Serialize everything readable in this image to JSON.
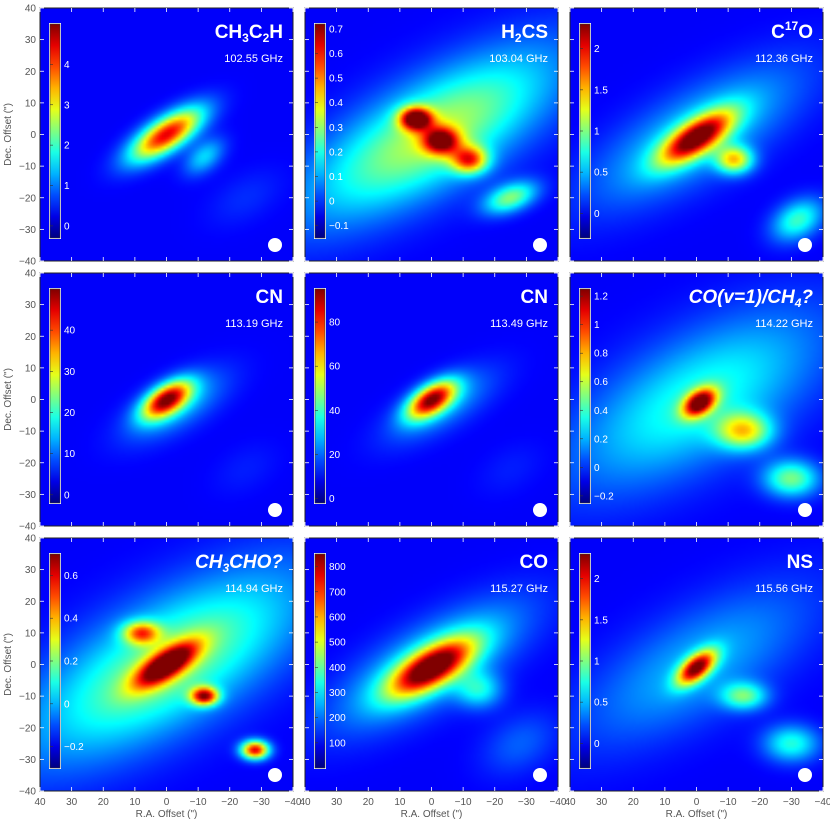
{
  "chart_data": {
    "type": "heatmap",
    "xlabel": "R.A. Offset (\")",
    "ylabel": "Dec. Offset (\")",
    "xlim": [
      40,
      -40
    ],
    "ylim": [
      -40,
      40
    ],
    "xticks": [
      40,
      30,
      20,
      10,
      0,
      -10,
      -20,
      -30,
      -40
    ],
    "yticks": [
      40,
      30,
      20,
      10,
      0,
      -10,
      -20,
      -30,
      -40
    ],
    "colormap": "jet",
    "panels": [
      {
        "molecule": {
          "base": "CH",
          "parts": [
            [
              "sub",
              "3"
            ],
            [
              "base",
              "C"
            ],
            [
              "sub",
              "2"
            ],
            [
              "base",
              "H"
            ]
          ]
        },
        "italic": false,
        "frequency": "102.55 GHz",
        "colorbar": {
          "min": -0.3,
          "max": 5.0,
          "ticks": [
            0,
            1,
            2,
            3,
            4
          ],
          "labels": [
            "0",
            "1",
            "2",
            "3",
            "4"
          ]
        },
        "blobs": [
          {
            "x": 0,
            "y": 0,
            "sx": 9,
            "sy": 3.5,
            "pa": -33,
            "amp": 1.0
          },
          {
            "x": -12,
            "y": -7,
            "sx": 5,
            "sy": 3,
            "pa": -40,
            "amp": 0.28
          },
          {
            "x": -25,
            "y": -20,
            "sx": 9,
            "sy": 5,
            "pa": -30,
            "amp": 0.06
          }
        ]
      },
      {
        "molecule": {
          "base": "H",
          "parts": [
            [
              "sub",
              "2"
            ],
            [
              "base",
              "CS"
            ]
          ]
        },
        "italic": false,
        "frequency": "103.04 GHz",
        "colorbar": {
          "min": -0.15,
          "max": 0.72,
          "ticks": [
            -0.1,
            0,
            0.1,
            0.2,
            0.3,
            0.4,
            0.5,
            0.6,
            0.7
          ],
          "labels": [
            "−0.1",
            "0",
            "0.1",
            "0.2",
            "0.3",
            "0.4",
            "0.5",
            "0.6",
            "0.7"
          ]
        },
        "blobs": [
          {
            "x": 0,
            "y": 0,
            "sx": 30,
            "sy": 11,
            "pa": -30,
            "amp": 0.35
          },
          {
            "x": 5,
            "y": 5,
            "sx": 3.5,
            "sy": 2.5,
            "pa": 0,
            "amp": 0.62
          },
          {
            "x": -3,
            "y": -2,
            "sx": 4,
            "sy": 3,
            "pa": 0,
            "amp": 0.5
          },
          {
            "x": -12,
            "y": -8,
            "sx": 4,
            "sy": 3,
            "pa": 0,
            "amp": 0.45
          },
          {
            "x": -25,
            "y": -20,
            "sx": 6,
            "sy": 3,
            "pa": -20,
            "amp": 0.3
          }
        ]
      },
      {
        "molecule": {
          "base": "C",
          "parts": [
            [
              "sup",
              "17"
            ],
            [
              "base",
              "O"
            ]
          ]
        },
        "italic": false,
        "frequency": "112.36 GHz",
        "colorbar": {
          "min": -0.3,
          "max": 2.3,
          "ticks": [
            0,
            0.5,
            1,
            1.5,
            2
          ],
          "labels": [
            "0",
            "0.5",
            "1",
            "1.5",
            "2"
          ]
        },
        "blobs": [
          {
            "x": 0,
            "y": 0,
            "sx": 25,
            "sy": 9,
            "pa": -30,
            "amp": 0.55
          },
          {
            "x": 0,
            "y": -1,
            "sx": 9,
            "sy": 3.5,
            "pa": -33,
            "amp": 1.75
          },
          {
            "x": -12,
            "y": -8,
            "sx": 4,
            "sy": 3,
            "pa": 0,
            "amp": 1.1
          },
          {
            "x": -32,
            "y": -27,
            "sx": 6,
            "sy": 4,
            "pa": -30,
            "amp": 0.7
          }
        ]
      },
      {
        "molecule": {
          "base": "CN",
          "parts": []
        },
        "italic": false,
        "frequency": "113.19 GHz",
        "colorbar": {
          "min": -2,
          "max": 50,
          "ticks": [
            0,
            10,
            20,
            30,
            40
          ],
          "labels": [
            "0",
            "10",
            "20",
            "30",
            "40"
          ]
        },
        "blobs": [
          {
            "x": 0,
            "y": 0,
            "sx": 6,
            "sy": 3,
            "pa": -33,
            "amp": 1.0
          },
          {
            "x": -3,
            "y": -2,
            "sx": 12,
            "sy": 5,
            "pa": -30,
            "amp": 0.25
          },
          {
            "x": -25,
            "y": -22,
            "sx": 8,
            "sy": 5,
            "pa": -30,
            "amp": 0.04
          }
        ]
      },
      {
        "molecule": {
          "base": "CN",
          "parts": []
        },
        "italic": false,
        "frequency": "113.49 GHz",
        "colorbar": {
          "min": -2,
          "max": 95,
          "ticks": [
            0,
            20,
            40,
            60,
            80
          ],
          "labels": [
            "0",
            "20",
            "40",
            "60",
            "80"
          ]
        },
        "blobs": [
          {
            "x": 0,
            "y": 0,
            "sx": 6,
            "sy": 3,
            "pa": -33,
            "amp": 1.0
          },
          {
            "x": -3,
            "y": -2,
            "sx": 13,
            "sy": 5,
            "pa": -30,
            "amp": 0.22
          },
          {
            "x": -25,
            "y": -22,
            "sx": 8,
            "sy": 5,
            "pa": -30,
            "amp": 0.04
          }
        ]
      },
      {
        "molecule": {
          "base": "CO(v=1)/CH",
          "parts": [
            [
              "sub",
              "4"
            ],
            [
              "base",
              "?"
            ]
          ]
        },
        "italic": true,
        "frequency": "114.22 GHz",
        "colorbar": {
          "min": -0.25,
          "max": 1.25,
          "ticks": [
            -0.2,
            0,
            0.2,
            0.4,
            0.6,
            0.8,
            1,
            1.2
          ],
          "labels": [
            "−0.2",
            "0",
            "0.2",
            "0.4",
            "0.6",
            "0.8",
            "1",
            "1.2"
          ]
        },
        "blobs": [
          {
            "x": 0,
            "y": 0,
            "sx": 30,
            "sy": 13,
            "pa": -30,
            "amp": 0.35
          },
          {
            "x": -1,
            "y": -1,
            "sx": 4,
            "sy": 2.5,
            "pa": -35,
            "amp": 0.95
          },
          {
            "x": -15,
            "y": -10,
            "sx": 6,
            "sy": 4,
            "pa": 0,
            "amp": 0.55
          },
          {
            "x": -30,
            "y": -25,
            "sx": 6,
            "sy": 4,
            "pa": 0,
            "amp": 0.45
          }
        ]
      },
      {
        "molecule": {
          "base": "CH",
          "parts": [
            [
              "sub",
              "3"
            ],
            [
              "base",
              "CHO?"
            ]
          ]
        },
        "italic": true,
        "frequency": "114.94 GHz",
        "colorbar": {
          "min": -0.3,
          "max": 0.7,
          "ticks": [
            -0.2,
            0,
            0.2,
            0.4,
            0.6
          ],
          "labels": [
            "−0.2",
            "0",
            "0.2",
            "0.4",
            "0.6"
          ]
        },
        "blobs": [
          {
            "x": 0,
            "y": 0,
            "sx": 33,
            "sy": 13,
            "pa": -30,
            "amp": 0.28
          },
          {
            "x": 0,
            "y": 0,
            "sx": 8,
            "sy": 3,
            "pa": -33,
            "amp": 0.55
          },
          {
            "x": -12,
            "y": -10,
            "sx": 3,
            "sy": 2,
            "pa": 0,
            "amp": 0.5
          },
          {
            "x": -28,
            "y": -27,
            "sx": 3,
            "sy": 2,
            "pa": 0,
            "amp": 0.55
          },
          {
            "x": 8,
            "y": 10,
            "sx": 4,
            "sy": 2.5,
            "pa": 0,
            "amp": 0.35
          }
        ]
      },
      {
        "molecule": {
          "base": "CO",
          "parts": []
        },
        "italic": false,
        "frequency": "115.27 GHz",
        "colorbar": {
          "min": 0,
          "max": 850,
          "ticks": [
            100,
            200,
            300,
            400,
            500,
            600,
            700,
            800
          ],
          "labels": [
            "100",
            "200",
            "300",
            "400",
            "500",
            "600",
            "700",
            "800"
          ]
        },
        "blobs": [
          {
            "x": 0,
            "y": -1,
            "sx": 10,
            "sy": 4,
            "pa": -30,
            "amp": 800
          },
          {
            "x": 0,
            "y": 0,
            "sx": 22,
            "sy": 8,
            "pa": -30,
            "amp": 300
          },
          {
            "x": -15,
            "y": -8,
            "sx": 5,
            "sy": 4,
            "pa": 0,
            "amp": 250
          },
          {
            "x": -28,
            "y": -25,
            "sx": 9,
            "sy": 6,
            "pa": -30,
            "amp": 100
          }
        ]
      },
      {
        "molecule": {
          "base": "NS",
          "parts": []
        },
        "italic": false,
        "frequency": "115.56 GHz",
        "colorbar": {
          "min": -0.3,
          "max": 2.3,
          "ticks": [
            0,
            0.5,
            1,
            1.5,
            2
          ],
          "labels": [
            "0",
            "0.5",
            "1",
            "1.5",
            "2"
          ]
        },
        "blobs": [
          {
            "x": 0,
            "y": 0,
            "sx": 28,
            "sy": 11,
            "pa": -30,
            "amp": 0.45
          },
          {
            "x": 0,
            "y": -1,
            "sx": 5,
            "sy": 2.5,
            "pa": -40,
            "amp": 1.9
          },
          {
            "x": -15,
            "y": -10,
            "sx": 5,
            "sy": 3,
            "pa": 0,
            "amp": 0.8
          },
          {
            "x": -30,
            "y": -25,
            "sx": 6,
            "sy": 4,
            "pa": 0,
            "amp": 0.7
          }
        ]
      }
    ]
  }
}
